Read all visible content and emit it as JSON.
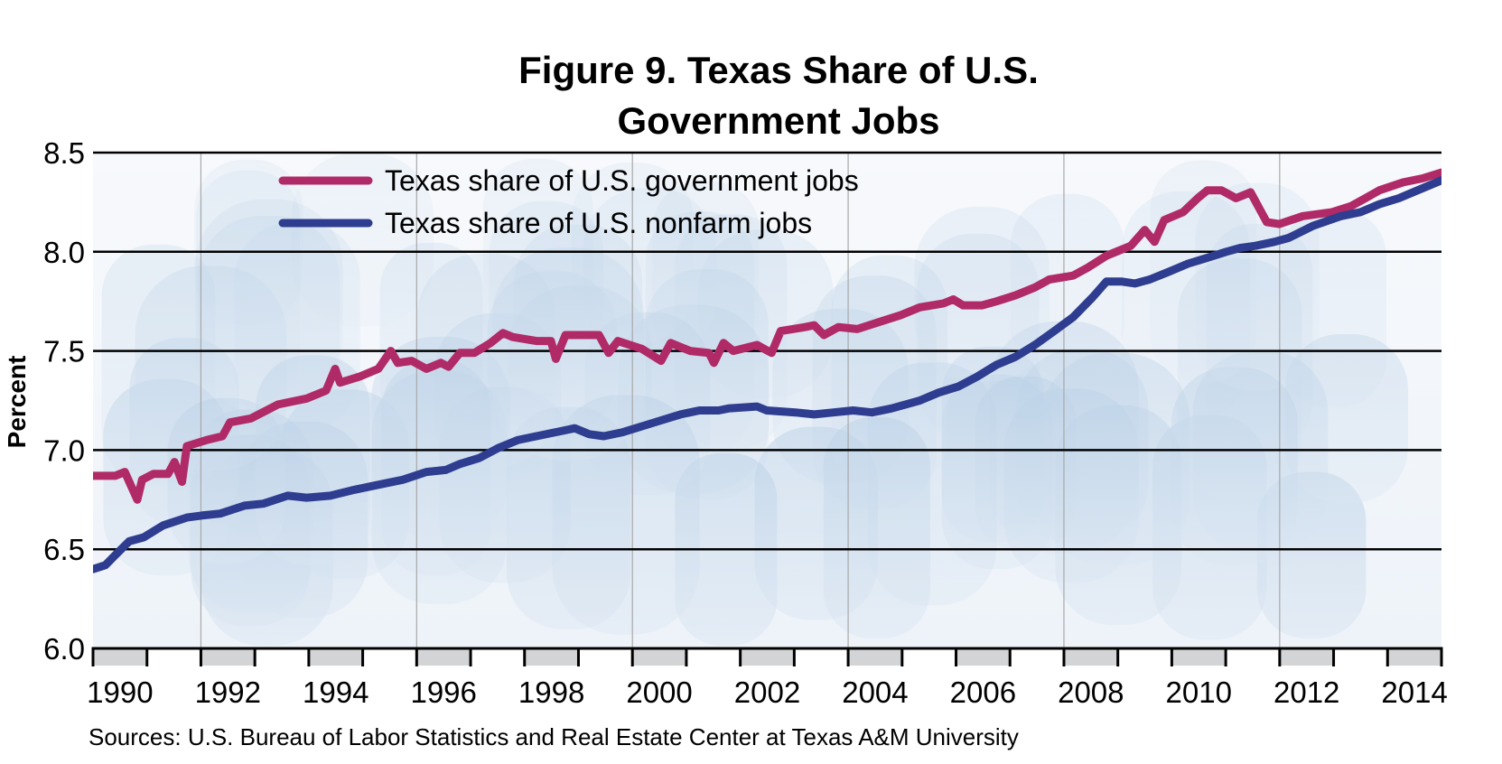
{
  "chart_data": {
    "type": "line",
    "title_lines": [
      "Figure 9. Texas Share of U.S.",
      "Government Jobs"
    ],
    "ylabel": "Percent",
    "xlabel": "",
    "ylim": [
      6.0,
      8.5
    ],
    "xlim": [
      1990,
      2015
    ],
    "y_ticks": [
      "6.0",
      "6.5",
      "7.0",
      "7.5",
      "8.0",
      "8.5"
    ],
    "x_ticks": [
      "1990",
      "1992",
      "1994",
      "1996",
      "1998",
      "2000",
      "2002",
      "2004",
      "2006",
      "2008",
      "2010",
      "2012",
      "2014"
    ],
    "grid": "horizontal at each y tick; vertical every 4 years",
    "legend_placement": "top-left",
    "source": "Sources: U.S. Bureau of Labor Statistics and Real Estate Center at Texas A&M University",
    "series": [
      {
        "name": "Texas share of U.S. government jobs",
        "color": "#b02a67",
        "x": [
          1990.0,
          1990.41,
          1990.59,
          1990.82,
          1990.91,
          1991.12,
          1991.39,
          1991.51,
          1991.65,
          1991.74,
          1992.1,
          1992.4,
          1992.54,
          1992.93,
          1993.43,
          1993.96,
          1994.32,
          1994.49,
          1994.58,
          1994.94,
          1995.29,
          1995.52,
          1995.65,
          1995.91,
          1996.18,
          1996.45,
          1996.59,
          1996.8,
          1997.07,
          1997.37,
          1997.6,
          1997.78,
          1998.22,
          1998.49,
          1998.58,
          1998.76,
          1999.11,
          1999.38,
          1999.56,
          1999.73,
          2000.18,
          2000.53,
          2000.71,
          2001.07,
          2001.42,
          2001.51,
          2001.69,
          2001.87,
          2002.31,
          2002.58,
          2002.75,
          2003.2,
          2003.37,
          2003.55,
          2003.82,
          2004.17,
          2004.62,
          2004.97,
          2005.33,
          2005.77,
          2005.95,
          2006.13,
          2006.48,
          2006.75,
          2007.1,
          2007.46,
          2007.73,
          2008.17,
          2008.44,
          2008.79,
          2009.24,
          2009.5,
          2009.68,
          2009.86,
          2010.21,
          2010.48,
          2010.66,
          2010.92,
          2011.19,
          2011.46,
          2011.76,
          2011.99,
          2012.43,
          2012.97,
          2013.32,
          2013.59,
          2013.85,
          2014.29,
          2014.65,
          2015.0
        ],
        "y": [
          6.87,
          6.87,
          6.89,
          6.75,
          6.85,
          6.88,
          6.88,
          6.94,
          6.84,
          7.02,
          7.05,
          7.07,
          7.14,
          7.16,
          7.23,
          7.26,
          7.3,
          7.41,
          7.34,
          7.37,
          7.41,
          7.5,
          7.44,
          7.45,
          7.41,
          7.44,
          7.42,
          7.49,
          7.49,
          7.54,
          7.59,
          7.57,
          7.55,
          7.55,
          7.46,
          7.58,
          7.58,
          7.58,
          7.49,
          7.55,
          7.51,
          7.45,
          7.54,
          7.5,
          7.49,
          7.44,
          7.54,
          7.5,
          7.53,
          7.49,
          7.6,
          7.62,
          7.63,
          7.58,
          7.62,
          7.61,
          7.65,
          7.68,
          7.72,
          7.74,
          7.76,
          7.73,
          7.73,
          7.75,
          7.78,
          7.82,
          7.86,
          7.88,
          7.92,
          7.98,
          8.03,
          8.11,
          8.05,
          8.16,
          8.2,
          8.27,
          8.31,
          8.31,
          8.27,
          8.3,
          8.15,
          8.14,
          8.18,
          8.2,
          8.23,
          8.27,
          8.31,
          8.35,
          8.37,
          8.4
        ]
      },
      {
        "name": "Texas share of U.S. nonfarm jobs",
        "color": "#2e3d8f",
        "x": [
          1990.0,
          1990.23,
          1990.41,
          1990.67,
          1990.94,
          1991.3,
          1991.74,
          1992.01,
          1992.36,
          1992.81,
          1993.16,
          1993.61,
          1993.96,
          1994.4,
          1994.85,
          1995.38,
          1995.74,
          1996.18,
          1996.54,
          1996.8,
          1997.16,
          1997.51,
          1997.87,
          1998.22,
          1998.76,
          1998.93,
          1999.2,
          1999.47,
          1999.82,
          2000.18,
          2000.53,
          2000.89,
          2001.24,
          2001.6,
          2001.78,
          2002.31,
          2002.49,
          2003.02,
          2003.37,
          2003.73,
          2004.09,
          2004.44,
          2004.8,
          2005.33,
          2005.68,
          2006.04,
          2006.39,
          2006.75,
          2007.1,
          2007.46,
          2007.82,
          2008.17,
          2008.53,
          2008.79,
          2009.06,
          2009.32,
          2009.59,
          2009.95,
          2010.3,
          2010.66,
          2011.01,
          2011.28,
          2011.55,
          2011.9,
          2012.17,
          2012.61,
          2013.14,
          2013.5,
          2013.85,
          2014.21,
          2014.56,
          2015.0
        ],
        "y": [
          6.4,
          6.42,
          6.47,
          6.54,
          6.56,
          6.62,
          6.66,
          6.67,
          6.68,
          6.72,
          6.73,
          6.77,
          6.76,
          6.77,
          6.8,
          6.83,
          6.85,
          6.89,
          6.9,
          6.93,
          6.96,
          7.01,
          7.05,
          7.07,
          7.1,
          7.11,
          7.08,
          7.07,
          7.09,
          7.12,
          7.15,
          7.18,
          7.2,
          7.2,
          7.21,
          7.22,
          7.2,
          7.19,
          7.18,
          7.19,
          7.2,
          7.19,
          7.21,
          7.25,
          7.29,
          7.32,
          7.37,
          7.43,
          7.47,
          7.53,
          7.6,
          7.67,
          7.77,
          7.85,
          7.85,
          7.84,
          7.86,
          7.9,
          7.94,
          7.97,
          8.0,
          8.02,
          8.03,
          8.05,
          8.07,
          8.13,
          8.18,
          8.2,
          8.24,
          8.27,
          8.31,
          8.36
        ]
      }
    ]
  }
}
